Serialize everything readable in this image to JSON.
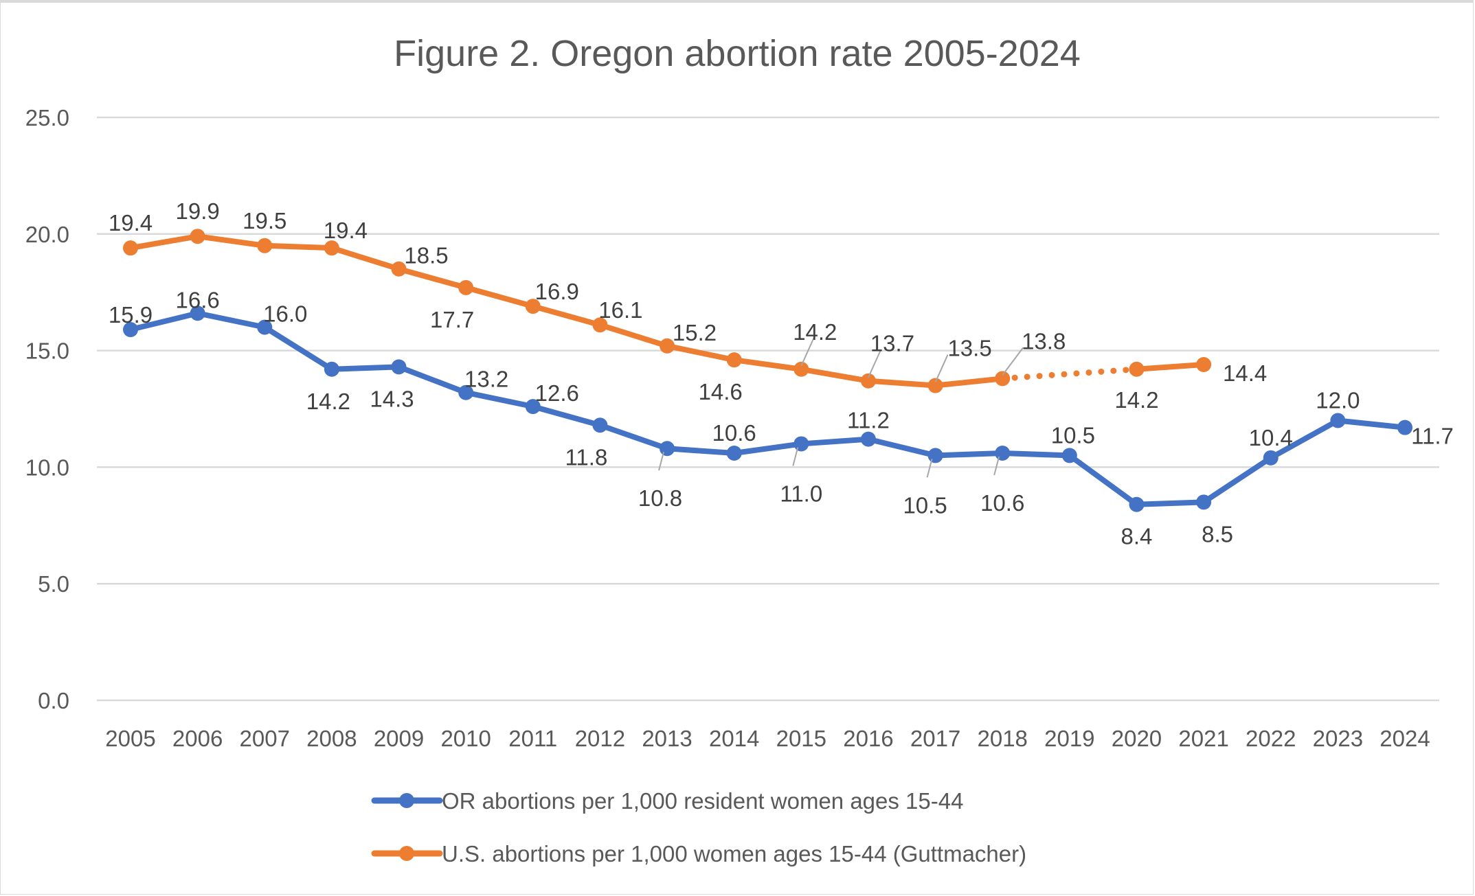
{
  "chart_data": {
    "type": "line",
    "title": "Figure 2. Oregon abortion rate 2005-2024",
    "xlabel": "",
    "ylabel": "",
    "ylim": [
      0,
      25
    ],
    "yticks": [
      "0.0",
      "5.0",
      "10.0",
      "15.0",
      "20.0",
      "25.0"
    ],
    "ytick_values": [
      0,
      5,
      10,
      15,
      20,
      25
    ],
    "grid": true,
    "legend_position": "bottom",
    "categories": [
      "2005",
      "2006",
      "2007",
      "2008",
      "2009",
      "2010",
      "2011",
      "2012",
      "2013",
      "2014",
      "2015",
      "2016",
      "2017",
      "2018",
      "2019",
      "2020",
      "2021",
      "2022",
      "2023",
      "2024"
    ],
    "series": [
      {
        "name": "OR abortions per 1,000 resident women ages 15-44",
        "color": "#4472C4",
        "values": [
          15.9,
          16.6,
          16.0,
          14.2,
          14.3,
          13.2,
          12.6,
          11.8,
          10.8,
          10.6,
          11.0,
          11.2,
          10.5,
          10.6,
          10.5,
          8.4,
          8.5,
          10.4,
          12.0,
          11.7
        ],
        "labels": [
          "15.9",
          "16.6",
          "16.0",
          "14.2",
          "14.3",
          "13.2",
          "12.6",
          "11.8",
          "10.8",
          "10.6",
          "11.0",
          "11.2",
          "10.5",
          "10.6",
          "10.5",
          "8.4",
          "8.5",
          "10.4",
          "12.0",
          "11.7"
        ]
      },
      {
        "name": "U.S. abortions per 1,000 women ages 15-44 (Guttmacher)",
        "color": "#ED7D31",
        "values": [
          19.4,
          19.9,
          19.5,
          19.4,
          18.5,
          17.7,
          16.9,
          16.1,
          15.2,
          14.6,
          14.2,
          13.7,
          13.5,
          13.8,
          null,
          14.2,
          14.4,
          null,
          null,
          null
        ],
        "labels": [
          "19.4",
          "19.9",
          "19.5",
          "19.4",
          "18.5",
          "17.7",
          "16.9",
          "16.1",
          "15.2",
          "14.6",
          "14.2",
          "13.7",
          "13.5",
          "13.8",
          null,
          "14.2",
          "14.4",
          null,
          null,
          null
        ],
        "note_dotted_gap": "2018-2019 connected with dotted line"
      }
    ]
  }
}
